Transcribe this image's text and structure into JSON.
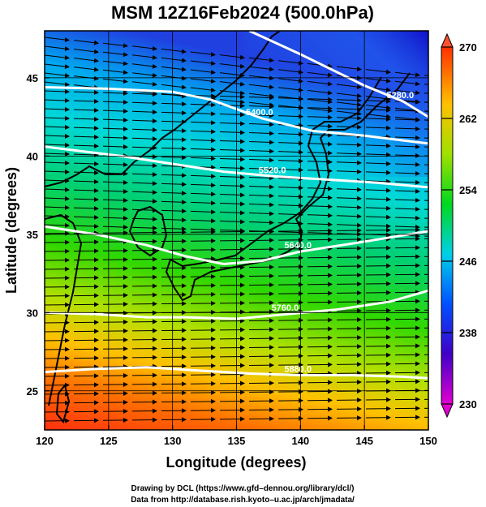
{
  "map": {
    "title": "MSM 12Z16Feb2024 (500.0hPa)",
    "xlabel": "Longitude (degrees)",
    "ylabel": "Latitude  (degrees)",
    "lon_range": [
      120,
      150
    ],
    "lat_range": [
      22.5,
      48
    ],
    "lon_ticks": [
      120,
      125,
      130,
      135,
      140,
      145,
      150
    ],
    "lat_ticks": [
      25,
      30,
      35,
      40,
      45
    ],
    "lon_tick_labels": [
      "120",
      "125",
      "130",
      "135",
      "140",
      "145",
      "150"
    ],
    "lat_tick_labels": [
      "25",
      "30",
      "35",
      "40",
      "45"
    ],
    "grid": true
  },
  "colorbar": {
    "min": 230,
    "max": 270,
    "ticks": [
      230,
      238,
      246,
      254,
      262,
      270
    ],
    "tick_labels": [
      "230",
      "238",
      "246",
      "254",
      "262",
      "270"
    ],
    "colors": [
      "#d400c8",
      "#2000c8",
      "#0080ff",
      "#00e0e0",
      "#00d800",
      "#c8e600",
      "#ffc000",
      "#ff4000"
    ]
  },
  "contours": [
    {
      "value": 5280,
      "label": "5280.0",
      "line": [
        [
          136,
          48
        ],
        [
          140,
          46.5
        ],
        [
          145,
          44.5
        ],
        [
          148,
          43.5
        ],
        [
          150,
          42.5
        ]
      ]
    },
    {
      "value": 5400,
      "label": "5400.0",
      "line": [
        [
          120,
          44.4
        ],
        [
          125,
          44.3
        ],
        [
          130,
          44.1
        ],
        [
          133,
          43.6
        ],
        [
          137,
          42.4
        ],
        [
          141,
          41.6
        ],
        [
          145,
          41.3
        ],
        [
          150,
          40.8
        ]
      ]
    },
    {
      "value": 5520,
      "label": "5520.0",
      "line": [
        [
          120,
          40.6
        ],
        [
          123,
          40.3
        ],
        [
          126,
          40
        ],
        [
          130,
          39.5
        ],
        [
          134,
          39
        ],
        [
          138,
          38.7
        ],
        [
          142,
          38.5
        ],
        [
          146,
          38.3
        ],
        [
          150,
          38
        ]
      ]
    },
    {
      "value": 5640,
      "label": "5640.0",
      "line": [
        [
          120,
          35.5
        ],
        [
          124,
          35
        ],
        [
          128,
          34.3
        ],
        [
          131,
          33.6
        ],
        [
          134,
          33.1
        ],
        [
          137,
          33.3
        ],
        [
          140,
          33.9
        ],
        [
          144,
          34.4
        ],
        [
          147,
          34.8
        ],
        [
          150,
          35.2
        ]
      ]
    },
    {
      "value": 5760,
      "label": "5760.0",
      "line": [
        [
          120,
          30
        ],
        [
          124,
          29.9
        ],
        [
          128,
          29.7
        ],
        [
          131,
          29.7
        ],
        [
          135,
          29.6
        ],
        [
          139,
          29.9
        ],
        [
          143,
          30.2
        ],
        [
          147,
          30.7
        ],
        [
          150,
          31.4
        ]
      ]
    },
    {
      "value": 5880,
      "label": "5880.0",
      "line": [
        [
          120,
          26.2
        ],
        [
          124,
          26.4
        ],
        [
          128,
          26.5
        ],
        [
          132,
          26.3
        ],
        [
          136,
          26.1
        ],
        [
          140,
          26
        ],
        [
          144,
          26
        ],
        [
          148,
          25.9
        ],
        [
          150,
          25.8
        ]
      ]
    }
  ],
  "credits": {
    "line1": "Drawing by DCL (https://www.gfd–dennou.org/library/dcl/)",
    "line2": "Data from http://database.rish.kyoto–u.ac.jp/arch/jmadata/"
  }
}
